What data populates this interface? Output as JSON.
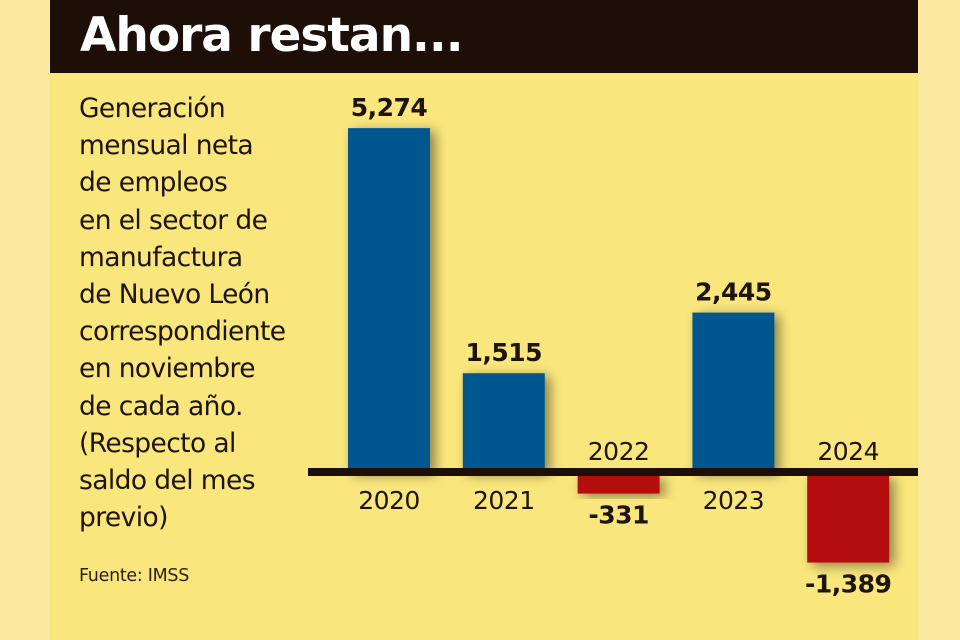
{
  "header": {
    "title": "Ahora restan..."
  },
  "description_lines": [
    "Generación",
    "mensual neta",
    "de empleos",
    "en el sector de",
    "manufactura",
    "de Nuevo León",
    "correspondiente",
    "en noviembre",
    "de cada año.",
    "(Respecto al",
    "saldo del mes",
    "previo)"
  ],
  "source": "Fuente: IMSS",
  "colors": {
    "positive": "#03568f",
    "negative": "#b30f0a",
    "baseline": "#1e0e08",
    "header_bg": "#1e0e08",
    "panel_bg": "#f9e67c"
  },
  "chart_data": {
    "type": "bar",
    "title": "Ahora restan...",
    "subtitle": "Generación mensual neta de empleos en el sector de manufactura de Nuevo León correspondiente en noviembre de cada año. (Respecto al saldo del mes previo)",
    "xlabel": "",
    "ylabel": "",
    "categories": [
      "2020",
      "2021",
      "2022",
      "2023",
      "2024"
    ],
    "values": [
      5274,
      1515,
      -331,
      2445,
      -1389
    ],
    "value_labels": [
      "5,274",
      "1,515",
      "-331",
      "2,445",
      "-1,389"
    ],
    "ylim": [
      -1389,
      5274
    ],
    "grid": false,
    "legend": "none",
    "source": "Fuente: IMSS"
  }
}
